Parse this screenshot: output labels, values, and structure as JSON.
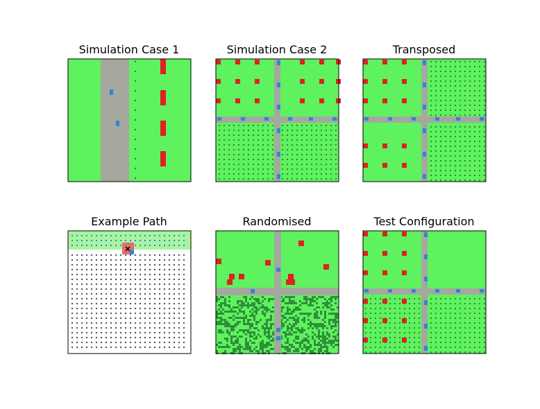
{
  "figure": {
    "panels": [
      {
        "id": "case1",
        "title": "Simulation Case 1"
      },
      {
        "id": "case2",
        "title": "Simulation Case 2"
      },
      {
        "id": "transposed",
        "title": "Transposed"
      },
      {
        "id": "example_path",
        "title": "Example Path"
      },
      {
        "id": "randomised",
        "title": "Randomised"
      },
      {
        "id": "test_config",
        "title": "Test Configuration"
      }
    ],
    "colors": {
      "grass": "#5ef25e",
      "road": "#a5a89f",
      "vehicle": "#dd2222",
      "agent": "#2f86d8",
      "crop_dot": "#2e7d32",
      "dark_crop": "#2f8f3a",
      "path_dot": "#555555",
      "path_region": "#a8f5a0",
      "path_blue_dot": "#3b6fe0",
      "target": "#e26d6d",
      "frame": "#000000"
    }
  }
}
